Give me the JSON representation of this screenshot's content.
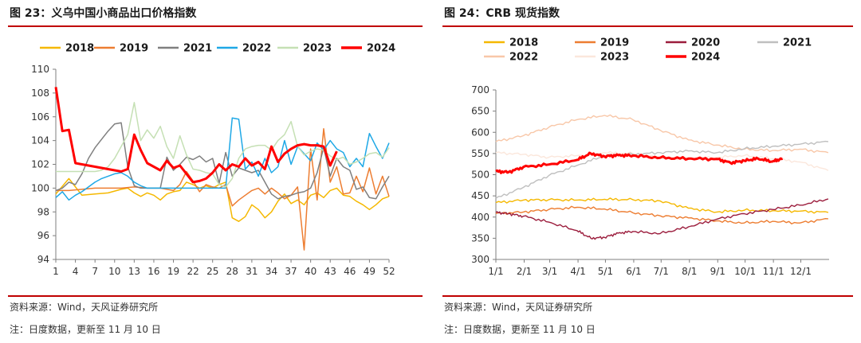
{
  "charts": {
    "left": {
      "title": "图 23：义乌中国小商品出口价格指数",
      "source": "资料来源：Wind，天风证券研究所",
      "note": "注：日度数据，更新至 11 月 10 日"
    },
    "right": {
      "title": "图 24：CRB 现货指数",
      "source": "资料来源：Wind，天风证券研究所",
      "note": "注：日度数据，更新至 11 月 10 日"
    }
  },
  "chart_data": [
    {
      "type": "line",
      "title": "图 23：义乌中国小商品出口价格指数",
      "xlabel": "",
      "ylabel": "",
      "ylim": [
        94,
        110
      ],
      "yticks": [
        94,
        96,
        98,
        100,
        102,
        104,
        106,
        108,
        110
      ],
      "xlim": [
        1,
        52
      ],
      "xticks": [
        1,
        4,
        7,
        10,
        13,
        16,
        19,
        22,
        25,
        28,
        31,
        34,
        37,
        40,
        43,
        46,
        49,
        52
      ],
      "legend_position": "top",
      "series": [
        {
          "name": "2018",
          "color": "#f5b800",
          "width": 1.5,
          "x": [
            1,
            3,
            5,
            7,
            9,
            11,
            12,
            13,
            14,
            15,
            16,
            17,
            18,
            19,
            20,
            21,
            22,
            23,
            24,
            25,
            26,
            27,
            28,
            29,
            30,
            31,
            32,
            33,
            34,
            35,
            36,
            37,
            38,
            39,
            40,
            41,
            42,
            43,
            44,
            45,
            46,
            47,
            48,
            49,
            50,
            51,
            52
          ],
          "y": [
            99.5,
            100.8,
            99.4,
            99.5,
            99.6,
            99.9,
            100,
            99.6,
            99.3,
            99.6,
            99.4,
            99,
            99.5,
            99.7,
            99.8,
            100.5,
            100.3,
            100,
            100.2,
            100,
            100.3,
            100.5,
            97.5,
            97.2,
            97.6,
            98.6,
            98.2,
            97.5,
            98,
            98.9,
            99.5,
            98.7,
            99,
            98.6,
            99.4,
            99.6,
            99.2,
            99.8,
            100,
            99.4,
            99.3,
            98.9,
            98.6,
            98.2,
            98.6,
            99.1,
            99.3
          ]
        },
        {
          "name": "2019",
          "color": "#ed7d31",
          "width": 1.5,
          "x": [
            1,
            3,
            5,
            7,
            9,
            11,
            13,
            15,
            17,
            19,
            20,
            21,
            22,
            23,
            24,
            25,
            26,
            27,
            28,
            29,
            30,
            31,
            32,
            33,
            34,
            35,
            36,
            37,
            38,
            39,
            40,
            41,
            42,
            43,
            44,
            45,
            46,
            47,
            48,
            49,
            50,
            51,
            52
          ],
          "y": [
            99.8,
            99.8,
            99.9,
            100,
            100,
            100,
            100.1,
            100,
            100,
            99.8,
            100.3,
            101.4,
            100.6,
            99.7,
            100.3,
            100.1,
            100,
            100.3,
            98.5,
            99,
            99.4,
            99.8,
            100,
            99.5,
            100,
            99.6,
            99.1,
            99.4,
            100.1,
            94.8,
            103.3,
            99,
            105,
            100.5,
            101.8,
            99.5,
            99.6,
            101,
            99.7,
            101.7,
            99.5,
            101,
            99.3
          ]
        },
        {
          "name": "2021",
          "color": "#7f7f7f",
          "width": 1.5,
          "x": [
            1,
            2,
            3,
            4,
            5,
            6,
            7,
            8,
            9,
            10,
            11,
            12,
            13,
            14,
            15,
            16,
            17,
            18,
            19,
            20,
            21,
            22,
            23,
            24,
            25,
            26,
            27,
            28,
            29,
            30,
            31,
            32,
            33,
            34,
            35,
            36,
            37,
            38,
            39,
            40,
            41,
            42,
            43,
            44,
            45,
            46,
            47,
            48,
            49,
            50,
            51,
            52
          ],
          "y": [
            99.8,
            100,
            100.5,
            100.3,
            101.2,
            102.5,
            103.4,
            104.1,
            104.8,
            105.4,
            105.5,
            101.8,
            100.2,
            100,
            100,
            100,
            100,
            102.6,
            101.5,
            102,
            102.6,
            102.4,
            102.7,
            102.2,
            102.5,
            100.4,
            103,
            101,
            101.7,
            101.5,
            101.3,
            101.5,
            100.5,
            99.5,
            99.1,
            99.3,
            99.4,
            99.6,
            99.7,
            100,
            101.3,
            103.4,
            101,
            102.5,
            101.8,
            101.5,
            99.9,
            100.1,
            99.2,
            99.1,
            100.1,
            101
          ]
        },
        {
          "name": "2022",
          "color": "#1ea8e6",
          "width": 1.5,
          "x": [
            1,
            2,
            3,
            4,
            5,
            6,
            7,
            8,
            9,
            10,
            11,
            12,
            13,
            14,
            15,
            16,
            17,
            18,
            19,
            20,
            21,
            22,
            23,
            24,
            25,
            26,
            27,
            28,
            29,
            30,
            31,
            32,
            33,
            34,
            35,
            36,
            37,
            38,
            39,
            40,
            41,
            42,
            43,
            44,
            45,
            46,
            47,
            48,
            49,
            50,
            51,
            52
          ],
          "y": [
            99.2,
            99.7,
            99,
            99.4,
            99.7,
            100.1,
            100.5,
            100.8,
            101,
            101.2,
            101.3,
            101,
            100.5,
            100.2,
            100,
            100,
            100,
            100,
            100,
            100,
            100,
            100,
            100,
            100,
            100,
            100,
            100,
            105.9,
            105.8,
            101.6,
            102.2,
            101,
            102.5,
            101.3,
            101.8,
            104,
            102,
            103.5,
            102.9,
            102.3,
            103.8,
            103.2,
            104,
            103.3,
            103,
            101.8,
            102.5,
            101.8,
            104.6,
            103.5,
            102.5,
            103.8
          ]
        },
        {
          "name": "2023",
          "color": "#c5e0b4",
          "width": 1.5,
          "x": [
            1,
            2,
            3,
            4,
            5,
            6,
            7,
            8,
            9,
            10,
            11,
            12,
            13,
            14,
            15,
            16,
            17,
            18,
            19,
            20,
            21,
            22,
            23,
            24,
            25,
            26,
            27,
            28,
            29,
            30,
            31,
            32,
            33,
            34,
            35,
            36,
            37,
            38,
            39,
            40,
            41,
            42,
            43,
            44,
            45,
            46,
            47,
            48,
            49,
            50,
            51,
            52
          ],
          "y": [
            101.4,
            101.4,
            101.4,
            101.4,
            101.4,
            101.4,
            101.4,
            101.5,
            101.8,
            102.5,
            103.5,
            104.5,
            107.2,
            104,
            104.9,
            104.2,
            105.2,
            103.5,
            102.5,
            104.4,
            102.8,
            101.6,
            101.5,
            101.3,
            101.2,
            100.3,
            100.1,
            100.8,
            102.5,
            103.3,
            103.5,
            103.6,
            103.6,
            103.2,
            104,
            104.5,
            105.6,
            103.5,
            102.8,
            103.1,
            103.3,
            103.2,
            102.7,
            102.4,
            102.6,
            102,
            102.2,
            102.5,
            102.9,
            103,
            102.6,
            103.4
          ]
        },
        {
          "name": "2024",
          "color": "#ff0000",
          "width": 3,
          "x": [
            1,
            2,
            3,
            4,
            5,
            6,
            7,
            8,
            9,
            10,
            11,
            12,
            13,
            14,
            15,
            16,
            17,
            18,
            19,
            20,
            21,
            22,
            23,
            24,
            25,
            26,
            27,
            28,
            29,
            30,
            31,
            32,
            33,
            34,
            35,
            36,
            37,
            38,
            39,
            40,
            41,
            42,
            43,
            44
          ],
          "y": [
            108.5,
            104.8,
            104.9,
            102.1,
            102,
            101.9,
            101.8,
            101.7,
            101.6,
            101.5,
            101.4,
            101.6,
            104.5,
            103.2,
            102.1,
            101.8,
            101.5,
            102.3,
            101.7,
            101.9,
            101.2,
            100.5,
            100.6,
            100.8,
            101.3,
            102,
            101.5,
            102,
            101.8,
            102.5,
            101.9,
            102.2,
            101.6,
            103.5,
            102.2,
            102.9,
            103.3,
            103.6,
            103.7,
            103.6,
            103.6,
            103.5,
            101.9,
            103.1
          ]
        }
      ]
    },
    {
      "type": "line",
      "title": "图 24：CRB 现货指数",
      "xlabel": "",
      "ylabel": "",
      "ylim": [
        300,
        700
      ],
      "yticks": [
        300,
        350,
        400,
        450,
        500,
        550,
        600,
        650,
        700
      ],
      "xticks": [
        "1/1",
        "2/1",
        "3/1",
        "4/1",
        "5/1",
        "6/1",
        "7/1",
        "8/1",
        "9/1",
        "10/1",
        "11/1",
        "12/1"
      ],
      "legend_position": "top",
      "series": [
        {
          "name": "2018",
          "color": "#f5b800",
          "width": 1.4,
          "x": [
            1,
            31,
            59,
            90,
            120,
            151,
            181,
            212,
            243,
            273,
            304,
            334,
            365
          ],
          "y": [
            434,
            440,
            441,
            440,
            442,
            441,
            438,
            421,
            412,
            416,
            415,
            414,
            411
          ]
        },
        {
          "name": "2019",
          "color": "#ed7d31",
          "width": 1.4,
          "x": [
            1,
            31,
            59,
            90,
            120,
            151,
            181,
            212,
            243,
            273,
            304,
            334,
            365
          ],
          "y": [
            408,
            412,
            418,
            423,
            419,
            410,
            403,
            398,
            391,
            386,
            390,
            386,
            396
          ]
        },
        {
          "name": "2020",
          "color": "#9b1c3c",
          "width": 1.4,
          "x": [
            1,
            15,
            31,
            59,
            90,
            105,
            120,
            135,
            151,
            181,
            212,
            243,
            273,
            304,
            334,
            365
          ],
          "y": [
            411,
            408,
            402,
            388,
            368,
            350,
            352,
            362,
            366,
            361,
            377,
            395,
            408,
            418,
            428,
            443
          ]
        },
        {
          "name": "2021",
          "color": "#bfbfbf",
          "width": 1.4,
          "x": [
            1,
            31,
            59,
            90,
            120,
            151,
            181,
            212,
            243,
            273,
            304,
            334,
            365
          ],
          "y": [
            444,
            470,
            498,
            522,
            545,
            548,
            552,
            556,
            552,
            561,
            567,
            572,
            578
          ]
        },
        {
          "name": "2022",
          "color": "#f8c7a8",
          "width": 1.4,
          "x": [
            1,
            31,
            59,
            90,
            120,
            151,
            181,
            212,
            243,
            273,
            304,
            334,
            365
          ],
          "y": [
            578,
            592,
            612,
            630,
            640,
            630,
            605,
            582,
            570,
            560,
            557,
            560,
            552
          ]
        },
        {
          "name": "2023",
          "color": "#fbe7dc",
          "width": 1.4,
          "x": [
            1,
            31,
            59,
            90,
            120,
            151,
            181,
            212,
            243,
            273,
            304,
            334,
            365
          ],
          "y": [
            552,
            548,
            541,
            545,
            552,
            550,
            540,
            538,
            541,
            545,
            538,
            530,
            510
          ]
        },
        {
          "name": "2024",
          "color": "#ff0000",
          "width": 3,
          "x": [
            1,
            15,
            31,
            59,
            90,
            105,
            120,
            135,
            151,
            181,
            212,
            243,
            258,
            273,
            288,
            304,
            315
          ],
          "y": [
            508,
            506,
            518,
            524,
            535,
            550,
            543,
            546,
            545,
            540,
            538,
            537,
            528,
            533,
            538,
            531,
            538
          ]
        }
      ]
    }
  ]
}
